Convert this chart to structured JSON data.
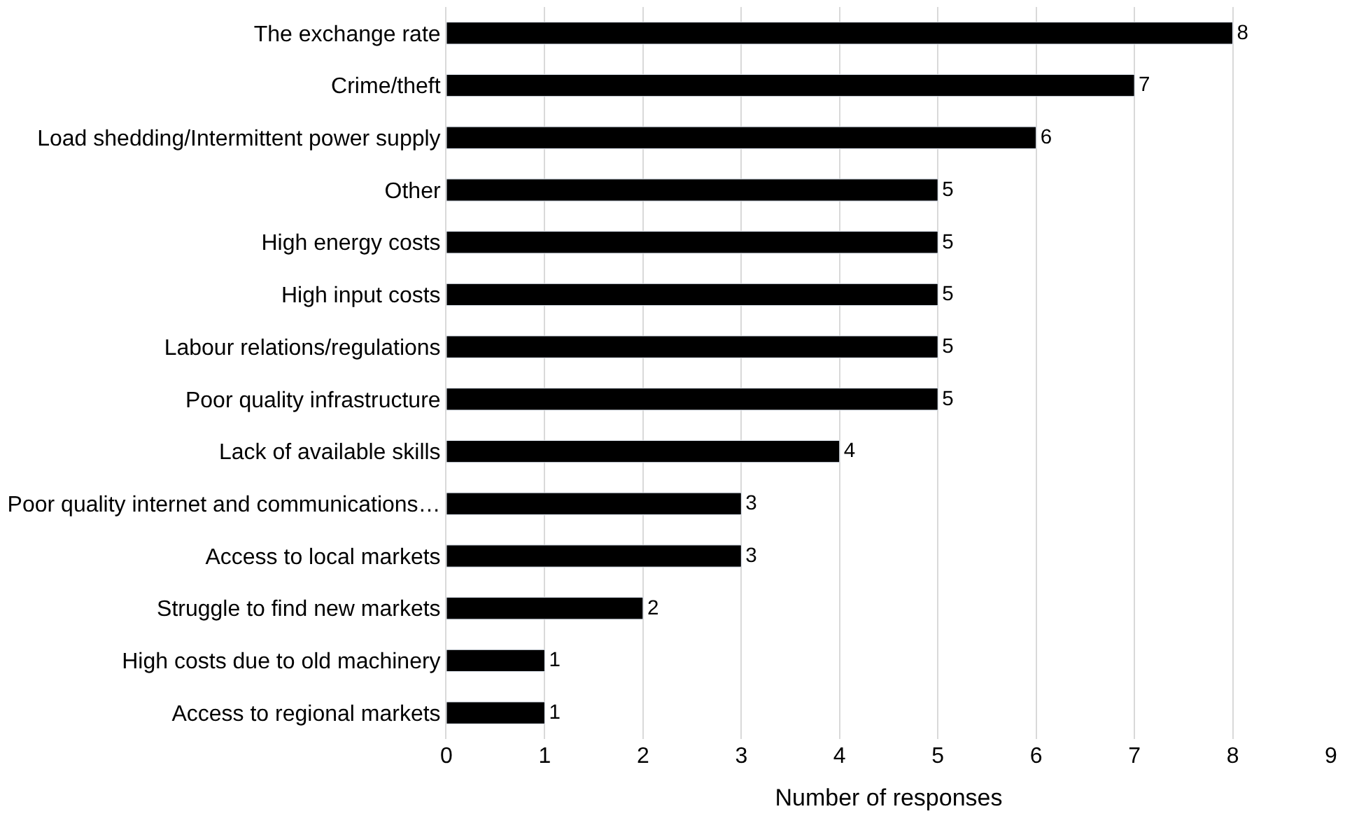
{
  "chart_data": {
    "type": "bar",
    "orientation": "horizontal",
    "xlabel": "Number of responses",
    "categories": [
      "The exchange rate",
      "Crime/theft",
      "Load shedding/Intermittent power supply",
      "Other",
      "High energy costs",
      "High input costs",
      "Labour relations/regulations",
      "Poor quality infrastructure",
      "Lack of available skills",
      "Poor quality internet and communications…",
      "Access to local markets",
      "Struggle to find new markets",
      "High costs due to old machinery",
      "Access to regional markets"
    ],
    "values": [
      8,
      7,
      6,
      5,
      5,
      5,
      5,
      5,
      4,
      3,
      3,
      2,
      1,
      1
    ],
    "color": "#000000",
    "xlim": [
      0,
      9
    ],
    "xticks": [
      0,
      1,
      2,
      3,
      4,
      5,
      6,
      7,
      8,
      9
    ],
    "grid": "x",
    "data_labels": true
  }
}
